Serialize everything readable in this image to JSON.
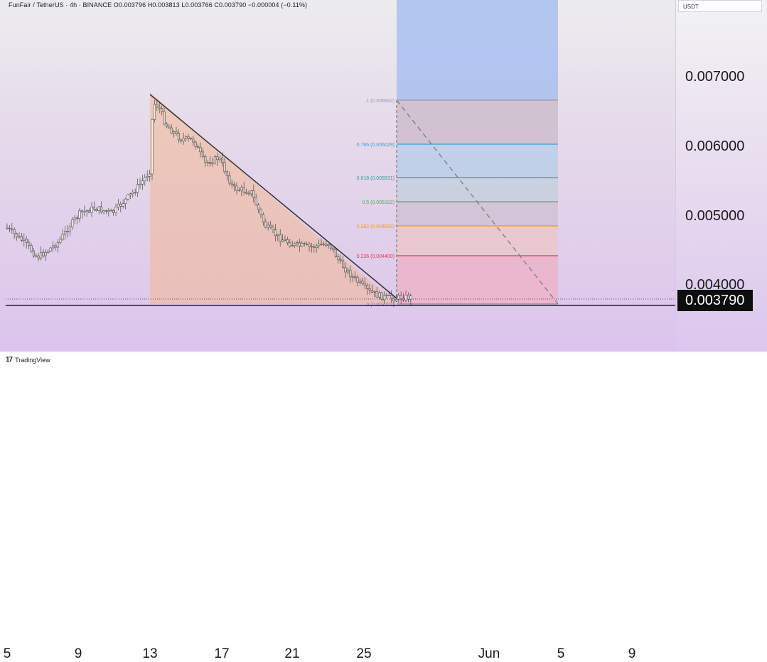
{
  "header": {
    "symbol_line": "FunFair / TetherUS · 4h · BINANCE  O0.003796 H0.003813 L0.003766 C0.003790 −0.000004 (−0.11%)"
  },
  "price_scale": {
    "unit": "USDT",
    "labels": [
      "0.007000",
      "0.006000",
      "0.005000",
      "0.004000"
    ],
    "last_price": "0.003790"
  },
  "time_scale": {
    "labels": [
      "5",
      "9",
      "13",
      "17",
      "21",
      "25",
      "Jun",
      "5",
      "9"
    ]
  },
  "fib": {
    "levels": [
      {
        "label": "1 (0.006662)",
        "color": "#9a9aa6"
      },
      {
        "label": "0.786 (0.006029)",
        "color": "#2ea8d8"
      },
      {
        "label": "0.618 (0.005531)",
        "color": "#26a69a"
      },
      {
        "label": "0.5 (0.005182)",
        "color": "#4caf50"
      },
      {
        "label": "0.382 (0.004833)",
        "color": "#ff9800"
      },
      {
        "label": "0.236 (0.004400)",
        "color": "#e53950"
      },
      {
        "label": "0 (0.003702)",
        "color": "#8a8a96"
      }
    ]
  },
  "colors": {
    "candle_up": "#f3f1e8",
    "candle_down": "#d9d2c8",
    "wick": "#4a4a4a",
    "trendline": "#333333",
    "triangle_fill": "#f2b894",
    "fib_top_zone": "#a9bff0"
  },
  "branding": {
    "logo_text": "TradingView",
    "logo_mark": "17"
  }
}
